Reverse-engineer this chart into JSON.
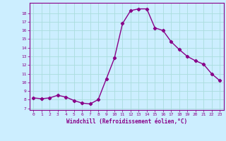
{
  "x": [
    0,
    1,
    2,
    3,
    4,
    5,
    6,
    7,
    8,
    9,
    10,
    11,
    12,
    13,
    14,
    15,
    16,
    17,
    18,
    19,
    20,
    21,
    22,
    23
  ],
  "y": [
    8.2,
    8.1,
    8.2,
    8.5,
    8.3,
    7.9,
    7.6,
    7.5,
    8.0,
    10.4,
    12.8,
    16.8,
    18.3,
    18.5,
    18.5,
    16.3,
    16.0,
    14.7,
    13.8,
    13.0,
    12.5,
    12.1,
    11.0,
    10.2
  ],
  "line_color": "#880088",
  "marker": "D",
  "markersize": 2.2,
  "linewidth": 1.0,
  "bg_color": "#cceeff",
  "grid_color": "#aadddd",
  "xlabel": "Windchill (Refroidissement éolien,°C)",
  "xlabel_color": "#880088",
  "tick_color": "#880088",
  "ylim": [
    6.8,
    19.2
  ],
  "yticks": [
    7,
    8,
    9,
    10,
    11,
    12,
    13,
    14,
    15,
    16,
    17,
    18
  ],
  "xlim": [
    -0.5,
    23.5
  ],
  "xticks": [
    0,
    1,
    2,
    3,
    4,
    5,
    6,
    7,
    8,
    9,
    10,
    11,
    12,
    13,
    14,
    15,
    16,
    17,
    18,
    19,
    20,
    21,
    22,
    23
  ],
  "xtick_labels": [
    "0",
    "1",
    "2",
    "3",
    "4",
    "5",
    "6",
    "7",
    "8",
    "9",
    "10",
    "11",
    "12",
    "13",
    "14",
    "15",
    "16",
    "17",
    "18",
    "19",
    "20",
    "21",
    "22",
    "23"
  ],
  "ytick_labels": [
    "7",
    "8",
    "9",
    "10",
    "11",
    "12",
    "13",
    "14",
    "15",
    "16",
    "17",
    "18"
  ]
}
